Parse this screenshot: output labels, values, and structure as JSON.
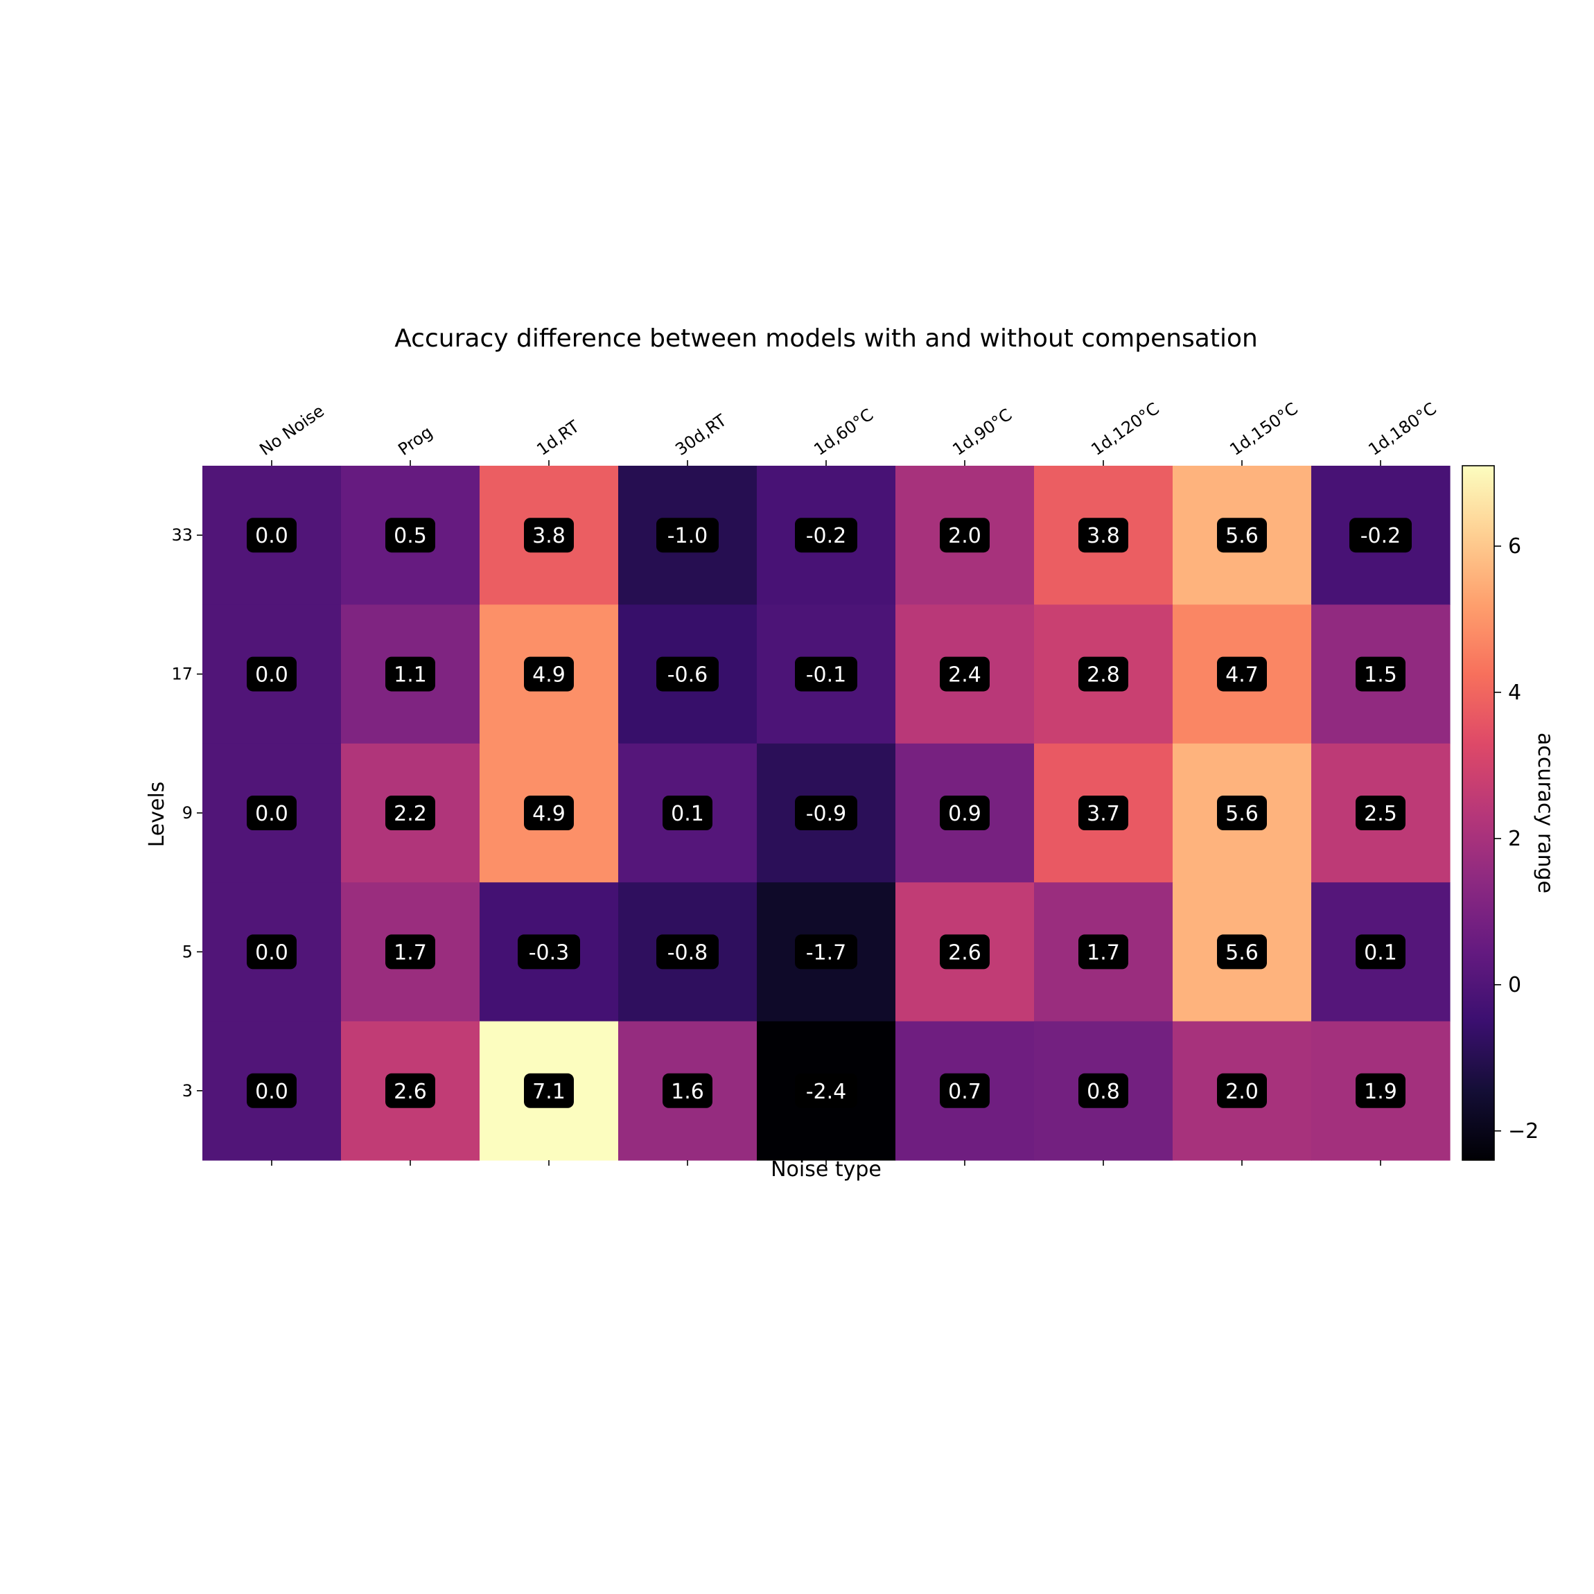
{
  "chart_data": {
    "type": "heatmap",
    "title": "Accuracy difference between models with and without compensation",
    "xlabel": "Noise type",
    "ylabel": "Levels",
    "x_categories": [
      "No Noise",
      "Prog",
      "1d,RT",
      "30d,RT",
      "1d,60°C",
      "1d,90°C",
      "1d,120°C",
      "1d,150°C",
      "1d,180°C"
    ],
    "y_categories": [
      "33",
      "17",
      "9",
      "5",
      "3"
    ],
    "values": [
      [
        0.0,
        0.5,
        3.8,
        -1.0,
        -0.2,
        2.0,
        3.8,
        5.6,
        -0.2
      ],
      [
        0.0,
        1.1,
        4.9,
        -0.6,
        -0.1,
        2.4,
        2.8,
        4.7,
        1.5
      ],
      [
        0.0,
        2.2,
        4.9,
        0.1,
        -0.9,
        0.9,
        3.7,
        5.6,
        2.5
      ],
      [
        0.0,
        1.7,
        -0.3,
        -0.8,
        -1.7,
        2.6,
        1.7,
        5.6,
        0.1
      ],
      [
        0.0,
        2.6,
        7.1,
        1.6,
        -2.4,
        0.7,
        0.8,
        2.0,
        1.9
      ]
    ],
    "colormap": "magma",
    "value_range": [
      -2.4,
      7.1
    ],
    "colorbar": {
      "label": "accuracy range",
      "ticks": [
        -2,
        0,
        2,
        4,
        6
      ],
      "tick_labels": [
        "−2",
        "0",
        "2",
        "4",
        "6"
      ]
    },
    "grid": false
  }
}
